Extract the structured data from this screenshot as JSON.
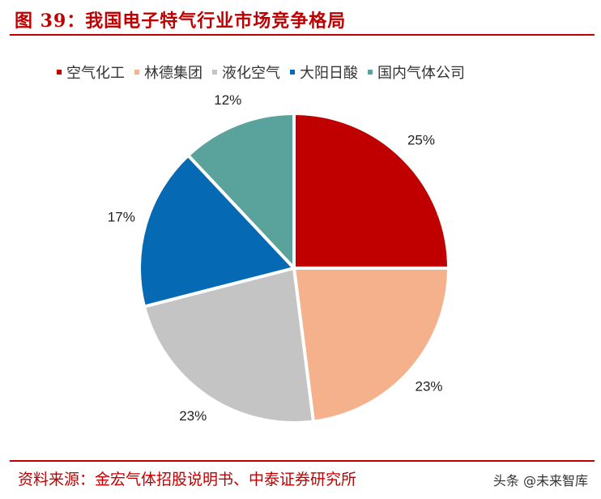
{
  "title": "图 39：我国电子特气行业市场竞争格局",
  "source": "资料来源：金宏气体招股说明书、中泰证券研究所",
  "watermark": "头条 @未来智库",
  "chart_data": {
    "type": "pie",
    "title": "",
    "legend_position": "top",
    "series": [
      {
        "name": "空气化工",
        "value": 25,
        "label": "25%",
        "color": "#c00000"
      },
      {
        "name": "林德集团",
        "value": 23,
        "label": "23%",
        "color": "#f4b18c"
      },
      {
        "name": "液化空气",
        "value": 23,
        "label": "23%",
        "color": "#c4c4c4"
      },
      {
        "name": "大阳日酸",
        "value": 17,
        "label": "17%",
        "color": "#0569b3"
      },
      {
        "name": "国内气体公司",
        "value": 12,
        "label": "12%",
        "color": "#5aa39c"
      }
    ]
  }
}
